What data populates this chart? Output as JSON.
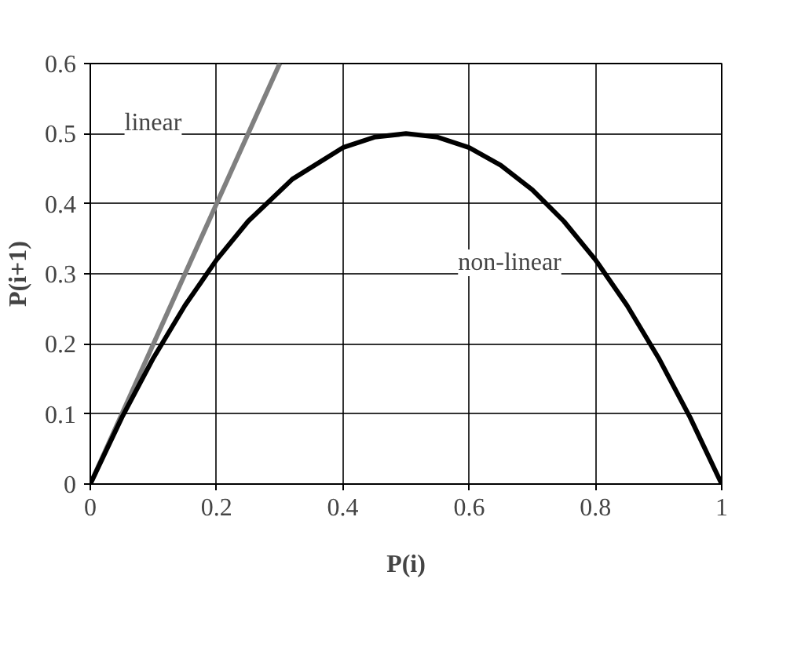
{
  "chart_data": {
    "type": "line",
    "xlabel": "P(i)",
    "ylabel": "P(i+1)",
    "xlim": [
      0,
      1
    ],
    "xticks": [
      0,
      0.2,
      0.4,
      0.6,
      0.8,
      1
    ],
    "ylim": [
      0,
      0.6
    ],
    "yticks": [
      0,
      0.1,
      0.2,
      0.3,
      0.4,
      0.5,
      0.6
    ],
    "grid": true,
    "series": [
      {
        "color": "#808080",
        "x": [
          0,
          0.3
        ],
        "values": [
          0,
          0.6
        ]
      },
      {
        "color": "#000000",
        "x": [
          0,
          0.05,
          0.1,
          0.15,
          0.2,
          0.25,
          0.32,
          0.4,
          0.45,
          0.5,
          0.55,
          0.6,
          0.65,
          0.7,
          0.75,
          0.8,
          0.85,
          0.9,
          0.95,
          1
        ],
        "values": [
          0,
          0.095,
          0.18,
          0.255,
          0.32,
          0.375,
          0.435,
          0.48,
          0.495,
          0.5,
          0.495,
          0.48,
          0.455,
          0.42,
          0.375,
          0.32,
          0.255,
          0.18,
          0.095,
          0
        ]
      }
    ],
    "annotations": [
      "linear",
      "non-linear"
    ]
  }
}
